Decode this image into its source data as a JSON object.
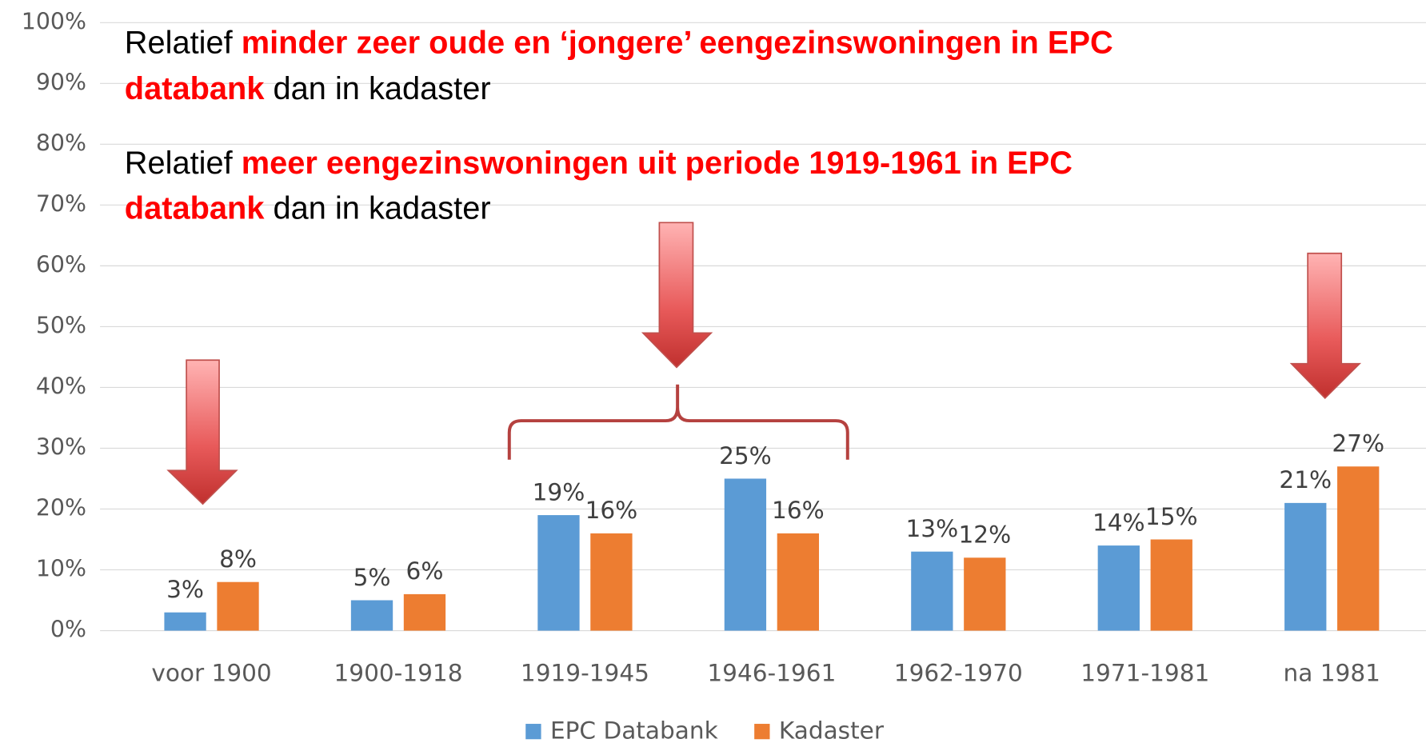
{
  "chart_data": {
    "type": "bar",
    "categories": [
      "voor 1900",
      "1900-1918",
      "1919-1945",
      "1946-1961",
      "1962-1970",
      "1971-1981",
      "na 1981"
    ],
    "series": [
      {
        "name": "EPC Databank",
        "color": "#5b9bd5",
        "values": [
          3,
          5,
          19,
          25,
          13,
          14,
          21
        ],
        "value_labels": [
          "3%",
          "5%",
          "19%",
          "25%",
          "13%",
          "14%",
          "21%"
        ]
      },
      {
        "name": "Kadaster",
        "color": "#ed7d31",
        "values": [
          8,
          6,
          16,
          16,
          12,
          15,
          27
        ],
        "value_labels": [
          "8%",
          "6%",
          "16%",
          "16%",
          "12%",
          "15%",
          "27%"
        ]
      }
    ],
    "ylim": [
      0,
      100
    ],
    "yticks": [
      {
        "value": 0,
        "label": "0%"
      },
      {
        "value": 10,
        "label": "10%"
      },
      {
        "value": 20,
        "label": "20%"
      },
      {
        "value": 30,
        "label": "30%"
      },
      {
        "value": 40,
        "label": "40%"
      },
      {
        "value": 50,
        "label": "50%"
      },
      {
        "value": 60,
        "label": "60%"
      },
      {
        "value": 70,
        "label": "70%"
      },
      {
        "value": 80,
        "label": "80%"
      },
      {
        "value": 90,
        "label": "90%"
      },
      {
        "value": 100,
        "label": "100%"
      }
    ],
    "grid": true,
    "legend": "bottom",
    "annotations": [
      [
        [
          {
            "text": "Relatief ",
            "emphasis": false
          },
          {
            "text": "minder zeer oude en ‘jongere’ eengezinswoningen in EPC",
            "emphasis": true
          }
        ],
        [
          {
            "text": "databank",
            "emphasis": true
          },
          {
            "text": " dan in kadaster",
            "emphasis": false
          }
        ]
      ],
      [
        [
          {
            "text": "Relatief ",
            "emphasis": false
          },
          {
            "text": "meer eengezinswoningen uit periode 1919-1961 in EPC",
            "emphasis": true
          }
        ],
        [
          {
            "text": "databank",
            "emphasis": true
          },
          {
            "text": " dan in kadaster",
            "emphasis": false
          }
        ]
      ]
    ]
  }
}
